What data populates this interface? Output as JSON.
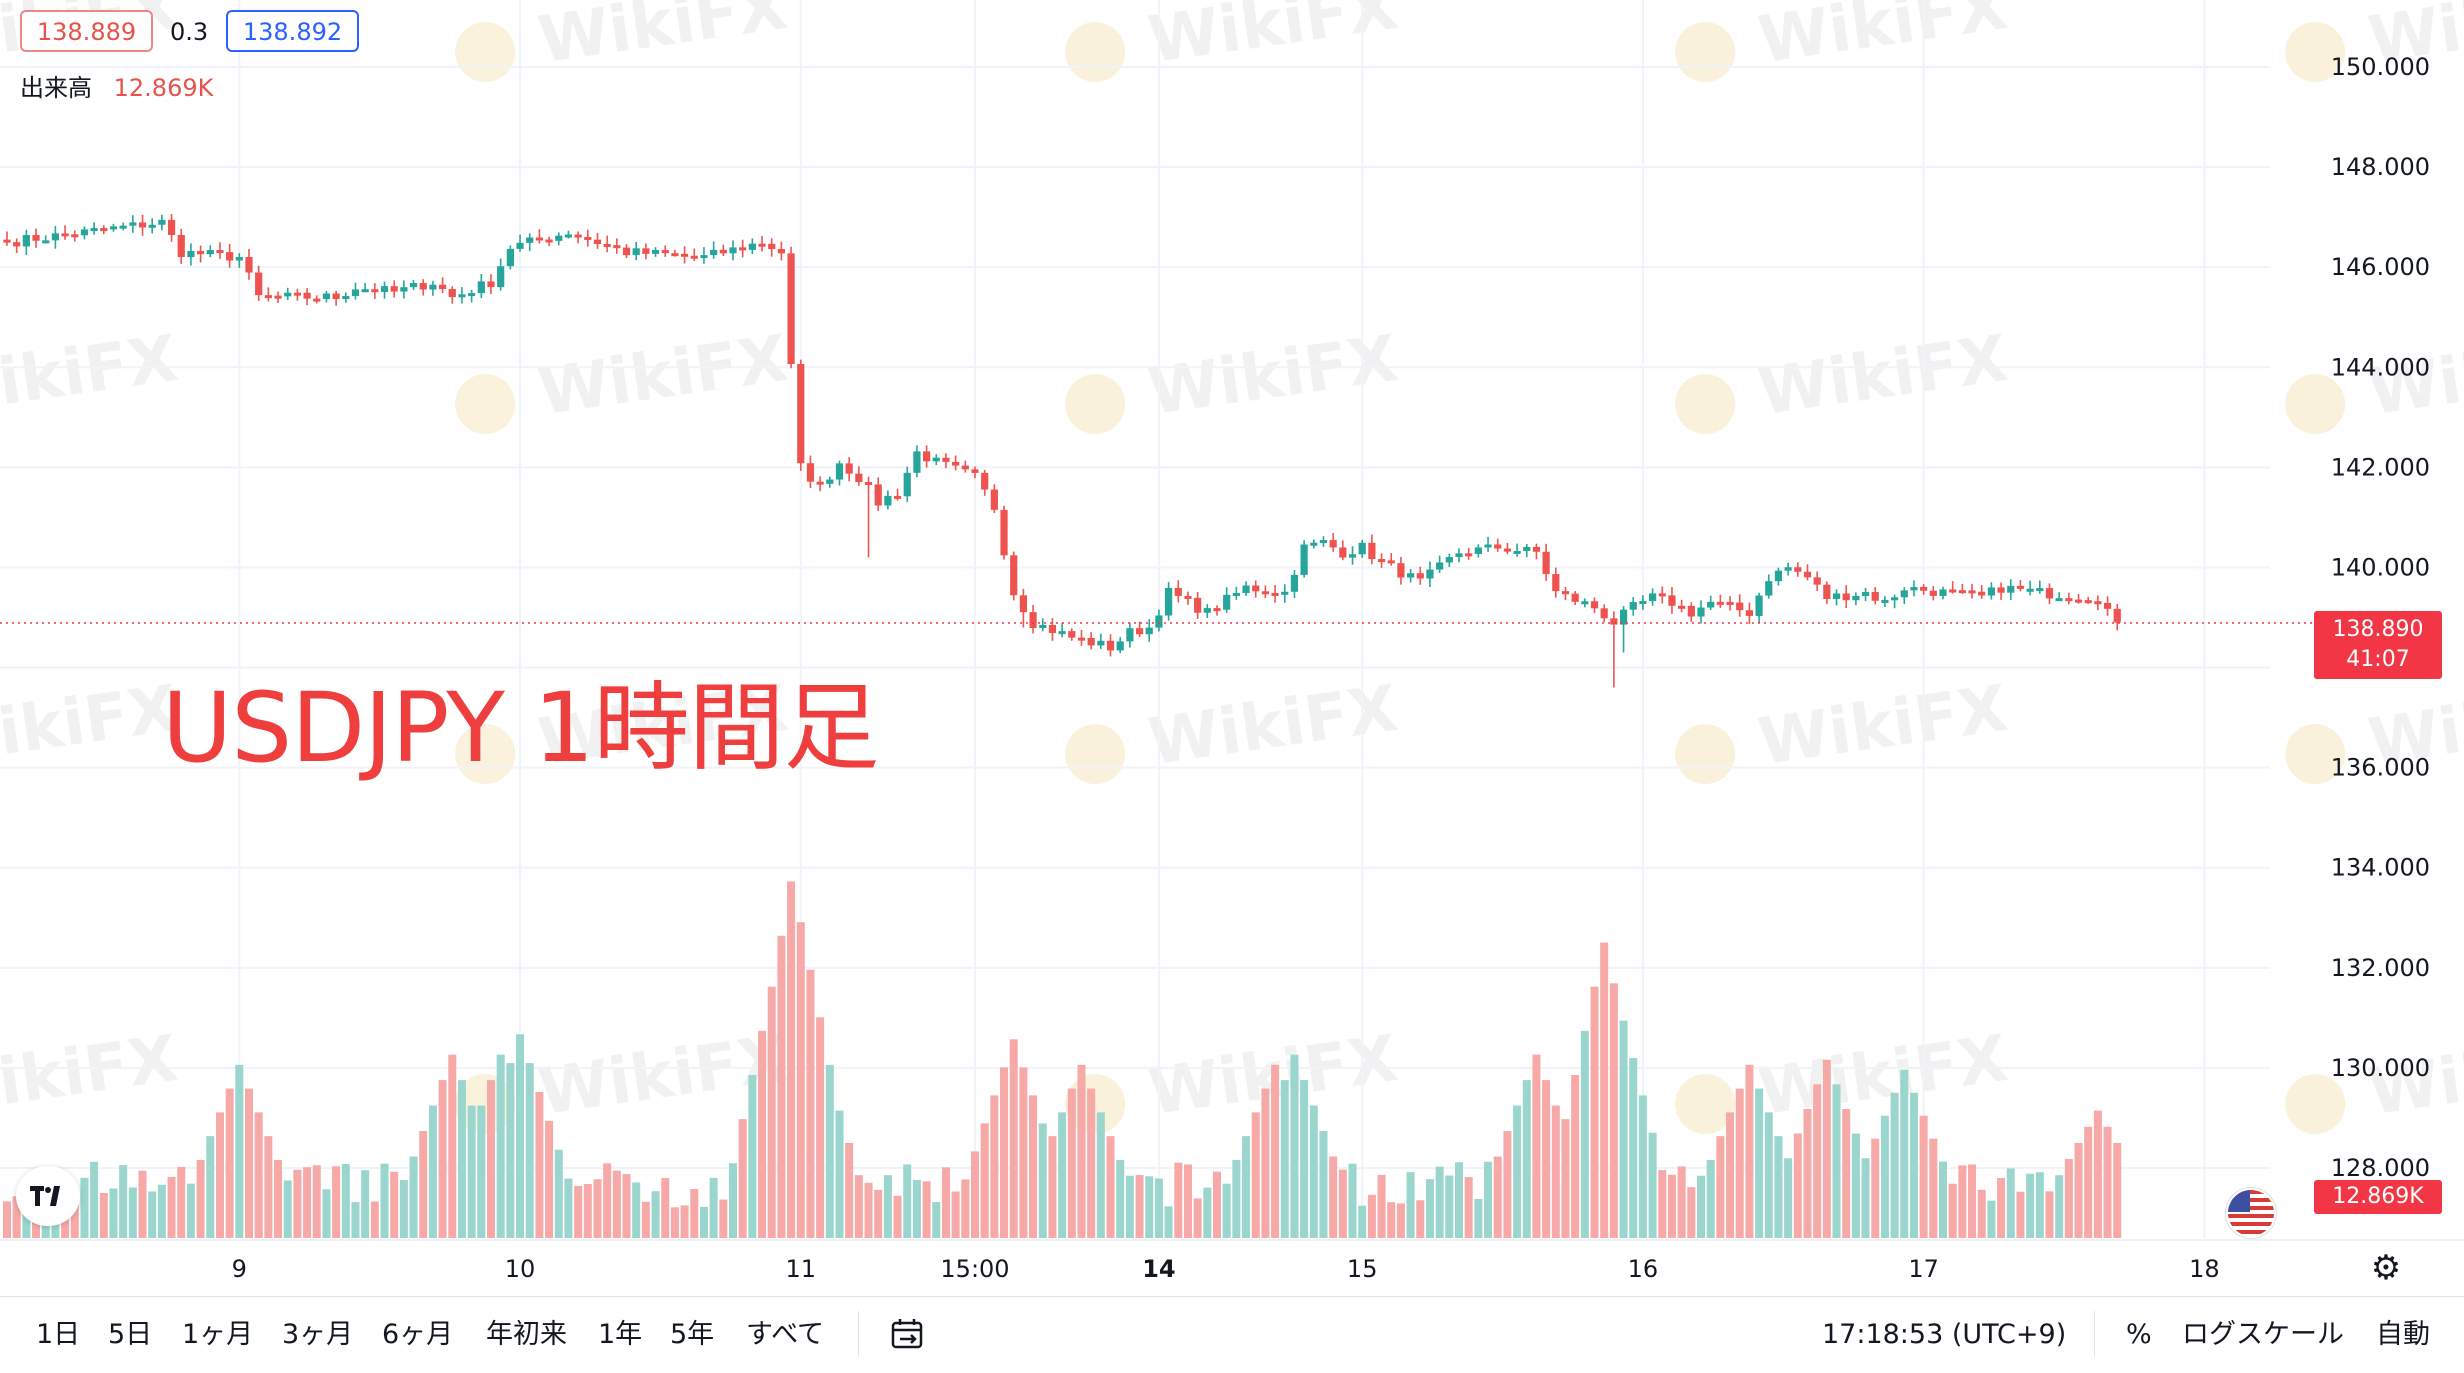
{
  "header": {
    "bid": "138.889",
    "spread": "0.3",
    "ask": "138.892",
    "volume_label": "出来高",
    "volume_value": "12.869K"
  },
  "overlay_title": "USDJPY 1時間足",
  "price_tag": {
    "price": "138.890",
    "countdown": "41:07"
  },
  "volume_tag": "12.869K",
  "watermark": "WikiFX",
  "range_buttons": [
    "1日",
    "5日",
    "1ヶ月",
    "3ヶ月",
    "6ヶ月",
    "年初来",
    "1年",
    "5年",
    "すべて"
  ],
  "status": {
    "time": "17:18:53 (UTC+9)",
    "percent": "%",
    "log_scale": "ログスケール",
    "auto": "自動"
  },
  "colors": {
    "up": "#26a69a",
    "down": "#ef5350",
    "up_volume": "#9bd6ce",
    "down_volume": "#f7a9a7",
    "accent": "#2962ff"
  },
  "chart_data": {
    "type": "candlestick",
    "title": "USDJPY 1時間足",
    "x_ticks": [
      {
        "label": "9",
        "index": 24
      },
      {
        "label": "10",
        "index": 53
      },
      {
        "label": "11",
        "index": 82
      },
      {
        "label": "15:00",
        "index": 100
      },
      {
        "label": "14",
        "index": 119,
        "bold": true
      },
      {
        "label": "15",
        "index": 140
      },
      {
        "label": "16",
        "index": 169
      },
      {
        "label": "17",
        "index": 198
      },
      {
        "label": "18",
        "index": 227
      }
    ],
    "y_ticks": [
      "150.000",
      "148.000",
      "146.000",
      "144.000",
      "142.000",
      "140.000",
      "138.000",
      "136.000",
      "134.000",
      "132.000",
      "130.000",
      "128.000"
    ],
    "ylim": [
      127.1,
      151.3
    ],
    "last_price": 138.89,
    "grid": true,
    "volume_panel": true,
    "anchors": [
      [
        0,
        146.5
      ],
      [
        16,
        146.9
      ],
      [
        18,
        146.3
      ],
      [
        24,
        146.2
      ],
      [
        26,
        145.4
      ],
      [
        34,
        145.4
      ],
      [
        36,
        145.6
      ],
      [
        40,
        145.5
      ],
      [
        44,
        145.7
      ],
      [
        46,
        145.4
      ],
      [
        50,
        145.7
      ],
      [
        52,
        146.4
      ],
      [
        58,
        146.7
      ],
      [
        64,
        146.3
      ],
      [
        72,
        146.2
      ],
      [
        78,
        146.5
      ],
      [
        80,
        146.3
      ],
      [
        81,
        144.0
      ],
      [
        82,
        142.0
      ],
      [
        84,
        141.6
      ],
      [
        86,
        142.1
      ],
      [
        88,
        141.8
      ],
      [
        90,
        141.3
      ],
      [
        92,
        141.5
      ],
      [
        94,
        142.3
      ],
      [
        96,
        142.1
      ],
      [
        100,
        141.8
      ],
      [
        102,
        141.2
      ],
      [
        104,
        139.5
      ],
      [
        106,
        138.9
      ],
      [
        110,
        138.6
      ],
      [
        114,
        138.4
      ],
      [
        116,
        138.7
      ],
      [
        118,
        138.8
      ],
      [
        120,
        139.5
      ],
      [
        124,
        139.1
      ],
      [
        128,
        139.6
      ],
      [
        132,
        139.5
      ],
      [
        134,
        140.4
      ],
      [
        136,
        140.5
      ],
      [
        138,
        140.3
      ],
      [
        140,
        140.4
      ],
      [
        142,
        140.1
      ],
      [
        144,
        139.9
      ],
      [
        146,
        139.7
      ],
      [
        148,
        140.0
      ],
      [
        150,
        140.3
      ],
      [
        154,
        140.4
      ],
      [
        158,
        140.3
      ],
      [
        160,
        139.5
      ],
      [
        164,
        139.2
      ],
      [
        166,
        138.9
      ],
      [
        168,
        139.2
      ],
      [
        170,
        139.4
      ],
      [
        172,
        139.3
      ],
      [
        174,
        139.1
      ],
      [
        176,
        139.3
      ],
      [
        180,
        139.1
      ],
      [
        182,
        139.8
      ],
      [
        184,
        140.0
      ],
      [
        186,
        139.8
      ],
      [
        188,
        139.4
      ],
      [
        192,
        139.5
      ],
      [
        194,
        139.3
      ],
      [
        196,
        139.6
      ],
      [
        200,
        139.5
      ],
      [
        204,
        139.4
      ],
      [
        206,
        139.6
      ],
      [
        210,
        139.5
      ],
      [
        216,
        139.4
      ],
      [
        218,
        138.9
      ]
    ],
    "spikes": [
      {
        "index": 89,
        "low": 140.2
      },
      {
        "index": 105,
        "low": 138.8
      },
      {
        "index": 166,
        "low": 137.6
      },
      {
        "index": 167,
        "low": 138.3
      }
    ],
    "volume_max": 640,
    "volume_peaks": [
      {
        "index": 24,
        "value": 280
      },
      {
        "index": 46,
        "value": 300
      },
      {
        "index": 51,
        "value": 300
      },
      {
        "index": 53,
        "value": 340
      },
      {
        "index": 80,
        "value": 520
      },
      {
        "index": 81,
        "value": 640
      },
      {
        "index": 82,
        "value": 560
      },
      {
        "index": 83,
        "value": 380
      },
      {
        "index": 104,
        "value": 330
      },
      {
        "index": 111,
        "value": 280
      },
      {
        "index": 131,
        "value": 280
      },
      {
        "index": 133,
        "value": 300
      },
      {
        "index": 158,
        "value": 300
      },
      {
        "index": 165,
        "value": 520
      },
      {
        "index": 166,
        "value": 440
      },
      {
        "index": 180,
        "value": 280
      },
      {
        "index": 188,
        "value": 290
      },
      {
        "index": 196,
        "value": 270
      },
      {
        "index": 216,
        "value": 190
      }
    ]
  }
}
